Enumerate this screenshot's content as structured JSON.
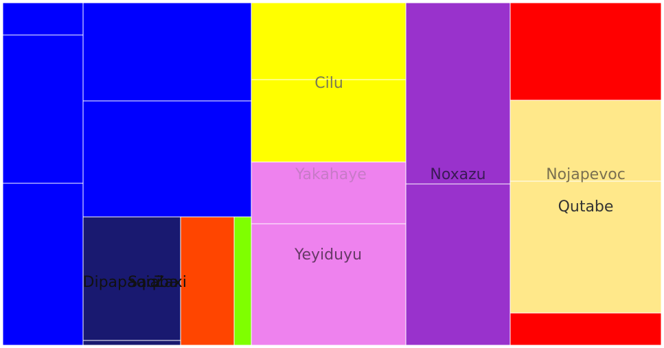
{
  "chart_data": {
    "type": "treemap",
    "categories": [
      {
        "name": "",
        "color": "#0000ff",
        "children": [
          {
            "name": "",
            "color": "#0000ff"
          },
          {
            "name": "",
            "color": "#0000ff"
          },
          {
            "name": "",
            "color": "#0000ff"
          },
          {
            "name": "",
            "color": "#0000ff"
          },
          {
            "name": "",
            "color": "#0000ff"
          }
        ]
      },
      {
        "name": "",
        "color": "#191970",
        "children": [
          {
            "name": "Dipapaqiaba",
            "color": "#191970"
          },
          {
            "name": "Saqi",
            "color": "#191970"
          },
          {
            "name": "Zaxi",
            "color": "#191970"
          }
        ]
      },
      {
        "name": "",
        "color": "#ff4500",
        "children": []
      },
      {
        "name": "",
        "color": "#7fff00",
        "children": []
      },
      {
        "name": "Cilu",
        "color": "#ffff00",
        "children": [
          {
            "name": "",
            "color": "#ffff00"
          },
          {
            "name": "",
            "color": "#ffff00"
          }
        ]
      },
      {
        "name": "Yakahaye",
        "color": "#ee82ee",
        "children": [
          {
            "name": "",
            "color": "#ee82ee"
          }
        ]
      },
      {
        "name": "Yeyiduyu",
        "color": "#ee82ee",
        "children": [
          {
            "name": "",
            "color": "#ee82ee"
          }
        ]
      },
      {
        "name": "Noxazu",
        "color": "#9932cc",
        "children": [
          {
            "name": "",
            "color": "#9932cc"
          },
          {
            "name": "",
            "color": "#9932cc"
          }
        ]
      },
      {
        "name": "Nojapevoc",
        "color": "#ff0000",
        "children": [
          {
            "name": "",
            "color": "#ff0000"
          },
          {
            "name": "",
            "color": "#ff0000"
          }
        ]
      },
      {
        "name": "Qutabe",
        "color": "#ffe88a",
        "children": [
          {
            "name": "",
            "color": "#ffe88a"
          }
        ]
      }
    ]
  }
}
